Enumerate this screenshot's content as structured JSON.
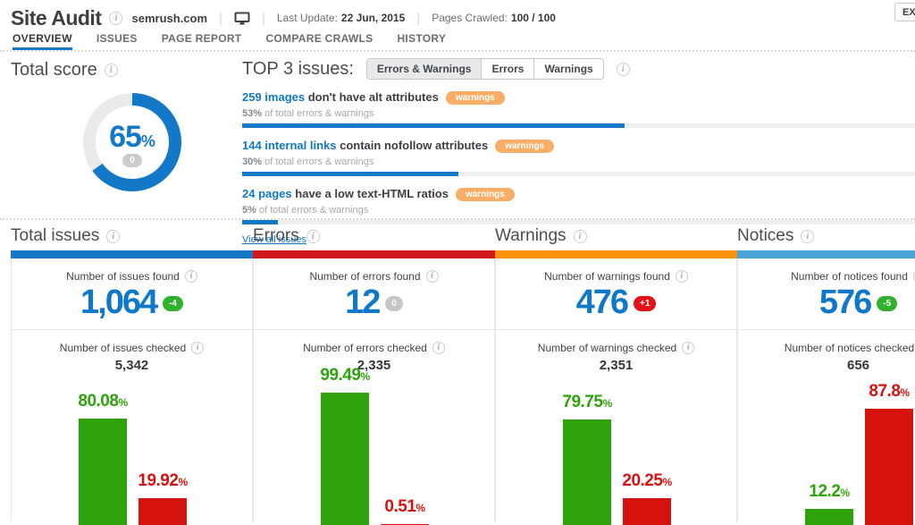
{
  "percent_sign": "%",
  "colors": {
    "brand_blue": "#1478c8",
    "errors_red": "#d2181c",
    "warnings_orange": "#f8920b",
    "notices_blue": "#49a4d8",
    "success_green": "#2fa30c",
    "fail_red": "#d6120e",
    "warning_badge_orange": "#f9ad66"
  },
  "header": {
    "app_title": "Site Audit",
    "domain": "semrush.com",
    "last_update_label": "Last Update:",
    "last_update_value": "22 Jun, 2015",
    "pages_crawled_label": "Pages Crawled:",
    "pages_crawled_value": "100 / 100",
    "export_label": "EXP"
  },
  "tabs": [
    {
      "label": "OVERVIEW",
      "active": true
    },
    {
      "label": "ISSUES",
      "active": false
    },
    {
      "label": "PAGE REPORT",
      "active": false
    },
    {
      "label": "COMPARE CRAWLS",
      "active": false
    },
    {
      "label": "HISTORY",
      "active": false
    }
  ],
  "total_score": {
    "title": "Total score",
    "value": 65,
    "badge": "0"
  },
  "top_issues": {
    "title": "TOP 3 issues:",
    "filters": [
      {
        "label": "Errors & Warnings",
        "active": true
      },
      {
        "label": "Errors",
        "active": false
      },
      {
        "label": "Warnings",
        "active": false
      }
    ],
    "items": [
      {
        "link": "259 images",
        "text": " don't have alt attributes",
        "badge": "warnings",
        "percent": 53,
        "percent_text": "53%",
        "sub_text": " of total errors & warnings"
      },
      {
        "link": "144 internal links",
        "text": " contain nofollow attributes",
        "badge": "warnings",
        "percent": 30,
        "percent_text": "30%",
        "sub_text": " of total errors & warnings"
      },
      {
        "link": "24 pages",
        "text": " have a low text-HTML ratios",
        "badge": "warnings",
        "percent": 5,
        "percent_text": "5%",
        "sub_text": " of total errors & warnings"
      }
    ],
    "view_all": "View all issues"
  },
  "columns": [
    {
      "title": "Total issues",
      "accent": "#1478c8",
      "found_label": "Number of issues found",
      "found_value": "1,064",
      "delta": "-4",
      "delta_bg": "#2fb12e",
      "checked_label": "Number of issues checked",
      "checked_value": "5,342",
      "chart": {
        "type": "bar",
        "green": 80.08,
        "green_label": "80.08",
        "red": 19.92,
        "red_label": "19.92"
      }
    },
    {
      "title": "Errors",
      "accent": "#d2181c",
      "found_label": "Number of errors found",
      "found_value": "12",
      "delta": "0",
      "delta_bg": "#c6c6c6",
      "checked_label": "Number of errors checked",
      "checked_value": "2,335",
      "chart": {
        "type": "bar",
        "green": 99.49,
        "green_label": "99.49",
        "red": 0.51,
        "red_label": "0.51"
      }
    },
    {
      "title": "Warnings",
      "accent": "#f8920b",
      "found_label": "Number of warnings found",
      "found_value": "476",
      "delta": "+1",
      "delta_bg": "#e21317",
      "checked_label": "Number of warnings checked",
      "checked_value": "2,351",
      "chart": {
        "type": "bar",
        "green": 79.75,
        "green_label": "79.75",
        "red": 20.25,
        "red_label": "20.25"
      }
    },
    {
      "title": "Notices",
      "accent": "#49a4d8",
      "found_label": "Number of notices found",
      "found_value": "576",
      "delta": "-5",
      "delta_bg": "#2fb12e",
      "checked_label": "Number of notices checked",
      "checked_value": "656",
      "chart": {
        "type": "bar",
        "green": 12.2,
        "green_label": "12.2",
        "red": 87.8,
        "red_label": "87.8"
      }
    }
  ]
}
